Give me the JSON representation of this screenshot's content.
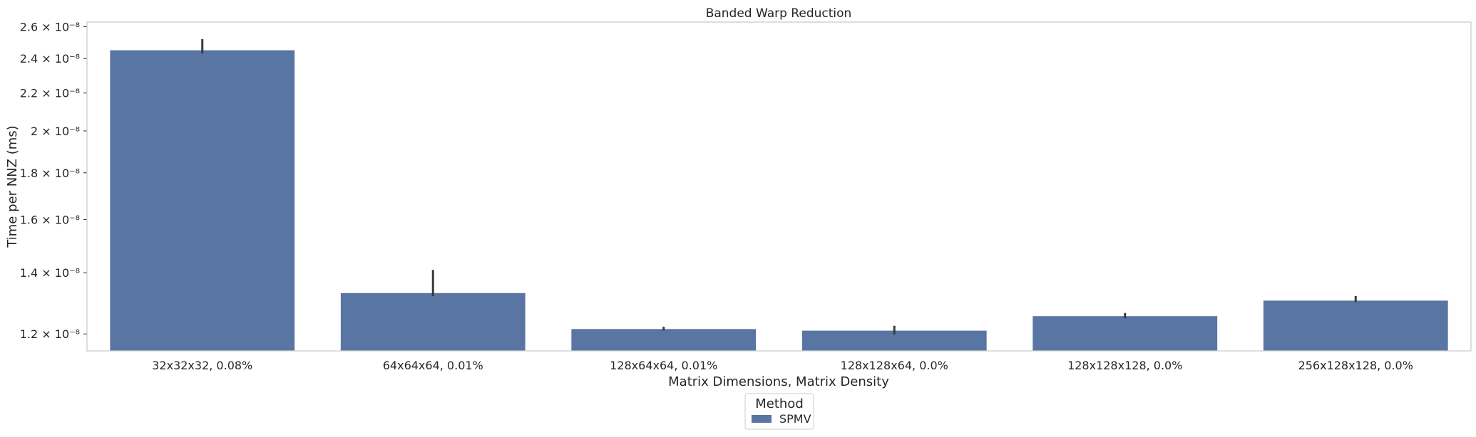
{
  "chart_data": {
    "type": "bar",
    "title": "Banded Warp Reduction",
    "xlabel": "Matrix Dimensions, Matrix Density",
    "ylabel": "Time per NNZ (ms)",
    "yscale": "log",
    "ylim": [
      1.15e-08,
      2.63e-08
    ],
    "yticks": [
      {
        "value": 1.2e-08,
        "label": "1.2 × 10⁻⁸"
      },
      {
        "value": 1.4e-08,
        "label": "1.4 × 10⁻⁸"
      },
      {
        "value": 1.6e-08,
        "label": "1.6 × 10⁻⁸"
      },
      {
        "value": 1.8e-08,
        "label": "1.8 × 10⁻⁸"
      },
      {
        "value": 2e-08,
        "label": "2 × 10⁻⁸"
      },
      {
        "value": 2.2e-08,
        "label": "2.2 × 10⁻⁸"
      },
      {
        "value": 2.4e-08,
        "label": "2.4 × 10⁻⁸"
      },
      {
        "value": 2.6e-08,
        "label": "2.6 × 10⁻⁸"
      }
    ],
    "categories": [
      "32x32x32, 0.08%",
      "64x64x64, 0.01%",
      "128x64x64, 0.01%",
      "128x128x64, 0.0%",
      "128x128x128, 0.0%",
      "256x128x128, 0.0%"
    ],
    "series": [
      {
        "name": "SPMV",
        "color": "#5975a4",
        "values": [
          2.45e-08,
          1.33e-08,
          1.215e-08,
          1.21e-08,
          1.255e-08,
          1.305e-08
        ],
        "error_low": [
          2.43e-08,
          1.32e-08,
          1.21e-08,
          1.198e-08,
          1.248e-08,
          1.3e-08
        ],
        "error_high": [
          2.52e-08,
          1.41e-08,
          1.222e-08,
          1.225e-08,
          1.265e-08,
          1.32e-08
        ]
      }
    ],
    "grid": false,
    "legend": {
      "title": "Method",
      "placement": "bottom-center"
    }
  }
}
